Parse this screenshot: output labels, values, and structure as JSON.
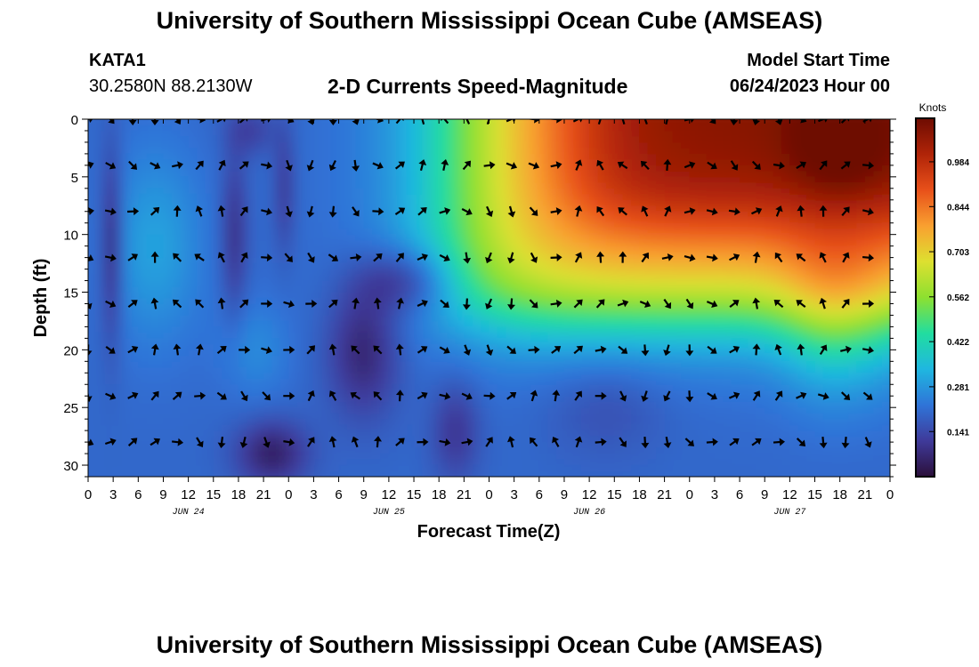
{
  "header": {
    "title": "University of Southern Mississippi Ocean Cube (AMSEAS)",
    "station": "KATA1",
    "coords": "30.2580N  88.2130W",
    "subtitle": "2-D Currents Speed-Magnitude",
    "model_label": "Model Start Time",
    "model_time": "06/24/2023 Hour 00"
  },
  "footer": {
    "title": "University of Southern Mississippi Ocean Cube (AMSEAS)"
  },
  "chart_data": {
    "type": "heatmap",
    "title": "2-D Currents Speed-Magnitude",
    "xlabel": "Forecast Time(Z)",
    "ylabel": "Depth (ft)",
    "x_unit": "hours since 06/24/2023 00Z",
    "xlim": [
      0,
      96
    ],
    "ylim": [
      0,
      31
    ],
    "y_inverted": true,
    "x_tick_labels": [
      "0",
      "3",
      "6",
      "9",
      "12",
      "15",
      "18",
      "21",
      "0",
      "3",
      "6",
      "9",
      "12",
      "15",
      "18",
      "21",
      "0",
      "3",
      "6",
      "9",
      "12",
      "15",
      "18",
      "21",
      "0",
      "3",
      "6",
      "9",
      "12",
      "15",
      "18",
      "21",
      "0"
    ],
    "day_labels": [
      {
        "hour": 12,
        "label": "JUN 24"
      },
      {
        "hour": 36,
        "label": "JUN 25"
      },
      {
        "hour": 60,
        "label": "JUN 26"
      },
      {
        "hour": 84,
        "label": "JUN 27"
      }
    ],
    "y_ticks": [
      0,
      5,
      10,
      15,
      20,
      25,
      30
    ],
    "colorbar": {
      "label": "Knots",
      "ticks": [
        "0.984",
        "0.844",
        "0.703",
        "0.562",
        "0.422",
        "0.281",
        "0.141"
      ],
      "tick_values": [
        0.984,
        0.844,
        0.703,
        0.562,
        0.422,
        0.281,
        0.141
      ],
      "range": [
        0,
        1.12
      ],
      "colors": [
        "#2b0f3a",
        "#3f3a9a",
        "#2f74d8",
        "#1fb7e0",
        "#21dda0",
        "#8de030",
        "#dde030",
        "#f9a030",
        "#e8501a",
        "#b02408",
        "#6e0c02"
      ]
    },
    "arrow_rows_depth": [
      0,
      4,
      8,
      12,
      16,
      20,
      24,
      28
    ]
  }
}
